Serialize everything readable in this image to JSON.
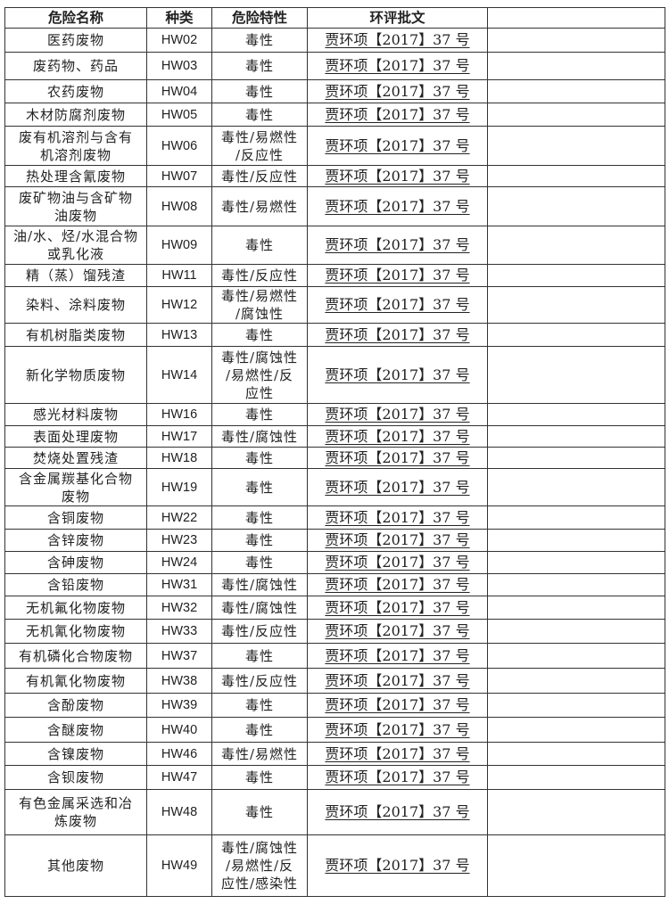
{
  "headers": [
    "危险名称",
    "种类",
    "危险特性",
    "环评批文",
    ""
  ],
  "rows": [
    {
      "name": "医药废物",
      "code": "HW02",
      "hazard": "毒性",
      "ref": "贾环项【2017】37 号"
    },
    {
      "name": "废药物、药品",
      "code": "HW03",
      "hazard": "毒性",
      "ref": "贾环项【2017】37 号"
    },
    {
      "name": "农药废物",
      "code": "HW04",
      "hazard": "毒性",
      "ref": "贾环项【2017】37 号"
    },
    {
      "name": "木材防腐剂废物",
      "code": "HW05",
      "hazard": "毒性",
      "ref": "贾环项【2017】37 号"
    },
    {
      "name": "废有机溶剂与含有\n机溶剂废物",
      "code": "HW06",
      "hazard": "毒性/易燃性\n/反应性",
      "ref": "贾环项【2017】37 号"
    },
    {
      "name": "热处理含氰废物",
      "code": "HW07",
      "hazard": "毒性/反应性",
      "ref": "贾环项【2017】37 号"
    },
    {
      "name": "废矿物油与含矿物\n油废物",
      "code": "HW08",
      "hazard": "毒性/易燃性",
      "ref": "贾环项【2017】37 号"
    },
    {
      "name": "油/水、烃/水混合物\n或乳化液",
      "code": "HW09",
      "hazard": "毒性",
      "ref": "贾环项【2017】37 号"
    },
    {
      "name": "精（蒸）馏残渣",
      "code": "HW11",
      "hazard": "毒性/反应性",
      "ref": "贾环项【2017】37 号"
    },
    {
      "name": "染料、涂料废物",
      "code": "HW12",
      "hazard": "毒性/易燃性\n/腐蚀性",
      "ref": "贾环项【2017】37 号"
    },
    {
      "name": "有机树脂类废物",
      "code": "HW13",
      "hazard": "毒性",
      "ref": "贾环项【2017】37 号"
    },
    {
      "name": "新化学物质废物",
      "code": "HW14",
      "hazard": "毒性/腐蚀性\n/易燃性/反\n应性",
      "ref": "贾环项【2017】37 号"
    },
    {
      "name": "感光材料废物",
      "code": "HW16",
      "hazard": "毒性",
      "ref": "贾环项【2017】37 号"
    },
    {
      "name": "表面处理废物",
      "code": "HW17",
      "hazard": "毒性/腐蚀性",
      "ref": "贾环项【2017】37 号"
    },
    {
      "name": "焚烧处置残渣",
      "code": "HW18",
      "hazard": "毒性",
      "ref": "贾环项【2017】37 号"
    },
    {
      "name": "含金属羰基化合物\n废物",
      "code": "HW19",
      "hazard": "毒性",
      "ref": "贾环项【2017】37 号"
    },
    {
      "name": "含铜废物",
      "code": "HW22",
      "hazard": "毒性",
      "ref": "贾环项【2017】37 号"
    },
    {
      "name": "含锌废物",
      "code": "HW23",
      "hazard": "毒性",
      "ref": "贾环项【2017】37 号"
    },
    {
      "name": "含砷废物",
      "code": "HW24",
      "hazard": "毒性",
      "ref": "贾环项【2017】37 号"
    },
    {
      "name": "含铅废物",
      "code": "HW31",
      "hazard": "毒性/腐蚀性",
      "ref": "贾环项【2017】37 号"
    },
    {
      "name": "无机氟化物废物",
      "code": "HW32",
      "hazard": "毒性/腐蚀性",
      "ref": "贾环项【2017】37 号"
    },
    {
      "name": "无机氰化物废物",
      "code": "HW33",
      "hazard": "毒性/反应性",
      "ref": "贾环项【2017】37 号"
    },
    {
      "name": "有机磷化合物废物",
      "code": "HW37",
      "hazard": "毒性",
      "ref": "贾环项【2017】37 号"
    },
    {
      "name": "有机氰化物废物",
      "code": "HW38",
      "hazard": "毒性/反应性",
      "ref": "贾环项【2017】37 号"
    },
    {
      "name": "含酚废物",
      "code": "HW39",
      "hazard": "毒性",
      "ref": "贾环项【2017】37 号"
    },
    {
      "name": "含醚废物",
      "code": "HW40",
      "hazard": "毒性",
      "ref": "贾环项【2017】37 号"
    },
    {
      "name": "含镍废物",
      "code": "HW46",
      "hazard": "毒性/易燃性",
      "ref": "贾环项【2017】37 号"
    },
    {
      "name": "含钡废物",
      "code": "HW47",
      "hazard": "毒性",
      "ref": "贾环项【2017】37 号"
    },
    {
      "name": "有色金属采选和冶\n炼废物",
      "code": "HW48",
      "hazard": "毒性",
      "ref": "贾环项【2017】37 号"
    },
    {
      "name": "其他废物",
      "code": "HW49",
      "hazard": "毒性/腐蚀性\n/易燃性/反\n应性/感染性",
      "ref": "贾环项【2017】37 号"
    }
  ]
}
